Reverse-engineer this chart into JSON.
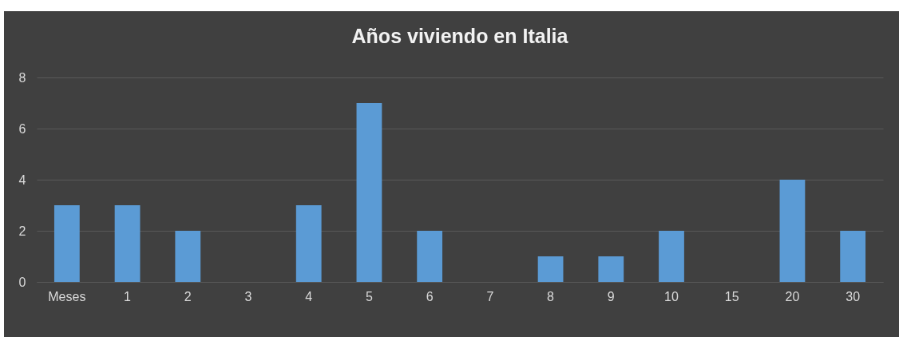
{
  "chart_data": {
    "type": "bar",
    "title": "Años viviendo en Italia",
    "categories": [
      "Meses",
      "1",
      "2",
      "3",
      "4",
      "5",
      "6",
      "7",
      "8",
      "9",
      "10",
      "15",
      "20",
      "30"
    ],
    "values": [
      3,
      3,
      2,
      0,
      3,
      7,
      2,
      0,
      1,
      1,
      2,
      0,
      4,
      2
    ],
    "color": "#5b9bd5",
    "ylim": [
      0,
      8
    ],
    "yticks": [
      0,
      2,
      4,
      6,
      8
    ],
    "grid": "y"
  }
}
